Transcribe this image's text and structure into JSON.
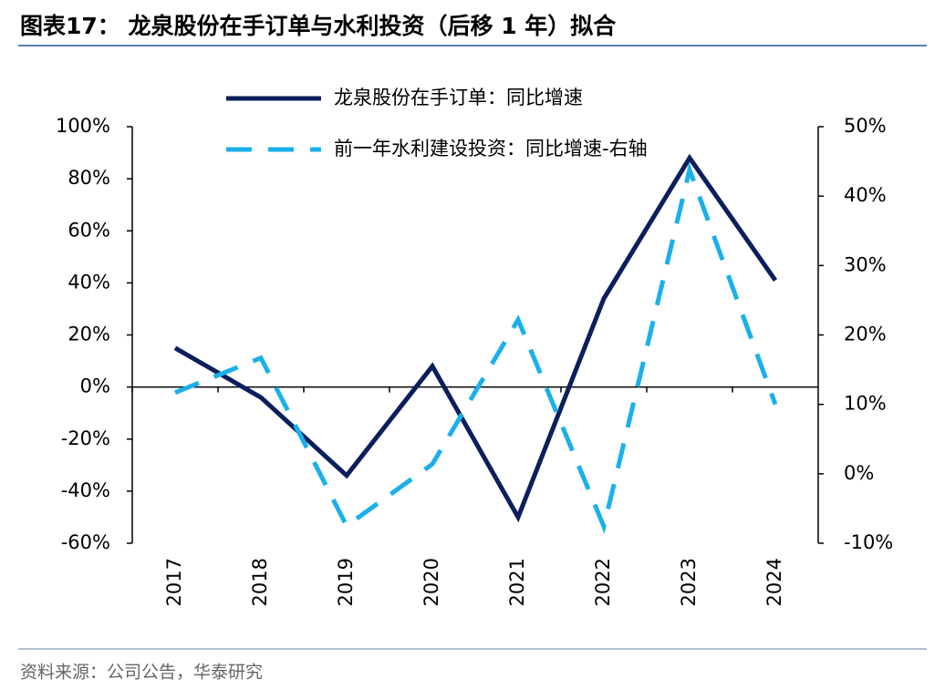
{
  "title": "图表17：  龙泉股份在手订单与水利投资（后移 1 年）拟合",
  "source": "资料来源：公司公告，华泰研究",
  "chart_data": {
    "type": "line",
    "categories": [
      "2017",
      "2018",
      "2019",
      "2020",
      "2021",
      "2022",
      "2023",
      "2024"
    ],
    "series": [
      {
        "name": "龙泉股份在手订单：同比增速",
        "color": "#0c1f5c",
        "dash": "solid",
        "values": [
          15,
          -4,
          -34,
          8,
          -50,
          34,
          88,
          41
        ]
      },
      {
        "name": "前一年水利建设投资：同比增速-右轴",
        "color": "#1bb0ea",
        "dash": "dashed",
        "axis": "y2",
        "values": [
          11.7,
          16.7,
          -7.5,
          1.4,
          22.2,
          -7.6,
          43.8,
          10
        ]
      }
    ],
    "ylim": [
      -60,
      100
    ],
    "yticks": [
      {
        "value": -60,
        "label": "-60%"
      },
      {
        "value": -40,
        "label": "-40%"
      },
      {
        "value": -20,
        "label": "-20%"
      },
      {
        "value": 0,
        "label": "0%"
      },
      {
        "value": 20,
        "label": "20%"
      },
      {
        "value": 40,
        "label": "40%"
      },
      {
        "value": 60,
        "label": "60%"
      },
      {
        "value": 80,
        "label": "80%"
      },
      {
        "value": 100,
        "label": "100%"
      }
    ],
    "y2lim": [
      -10,
      50
    ],
    "y2ticks": [
      {
        "value": -10,
        "label": "-10%"
      },
      {
        "value": 0,
        "label": "0%"
      },
      {
        "value": 10,
        "label": "10%"
      },
      {
        "value": 20,
        "label": "20%"
      },
      {
        "value": 30,
        "label": "30%"
      },
      {
        "value": 40,
        "label": "40%"
      },
      {
        "value": 50,
        "label": "50%"
      }
    ],
    "legend": "top"
  }
}
